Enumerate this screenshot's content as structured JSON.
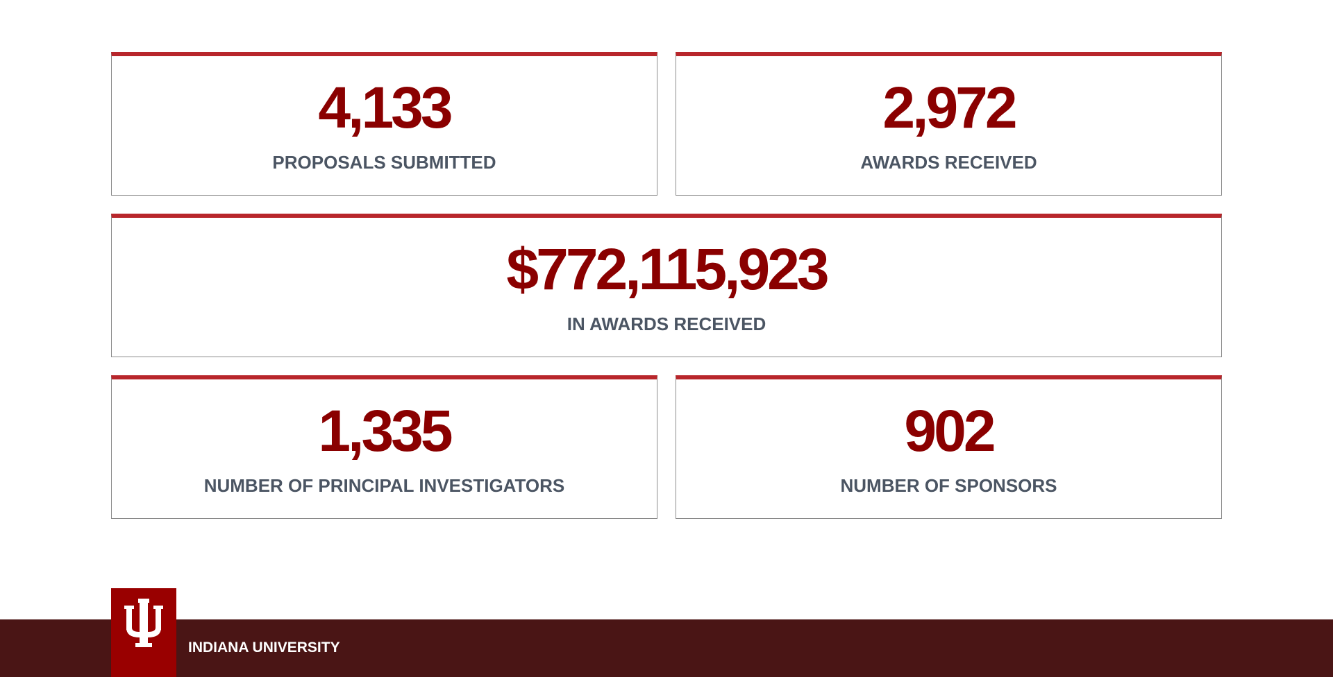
{
  "stats": {
    "proposals": {
      "value": "4,133",
      "label": "PROPOSALS SUBMITTED"
    },
    "awards": {
      "value": "2,972",
      "label": "AWARDS RECEIVED"
    },
    "amount": {
      "value": "$772,115,923",
      "label": "IN AWARDS RECEIVED"
    },
    "investigators": {
      "value": "1,335",
      "label": "NUMBER OF PRINCIPAL INVESTIGATORS"
    },
    "sponsors": {
      "value": "902",
      "label": "NUMBER OF SPONSORS"
    }
  },
  "footer": {
    "institution": "INDIANA UNIVERSITY",
    "logo_icon": "iu-trident-icon"
  },
  "colors": {
    "accent_border": "#b8262b",
    "number": "#8a0000",
    "label": "#4b5563",
    "footer_bg": "#4a1515",
    "logo_bg": "#990000"
  }
}
